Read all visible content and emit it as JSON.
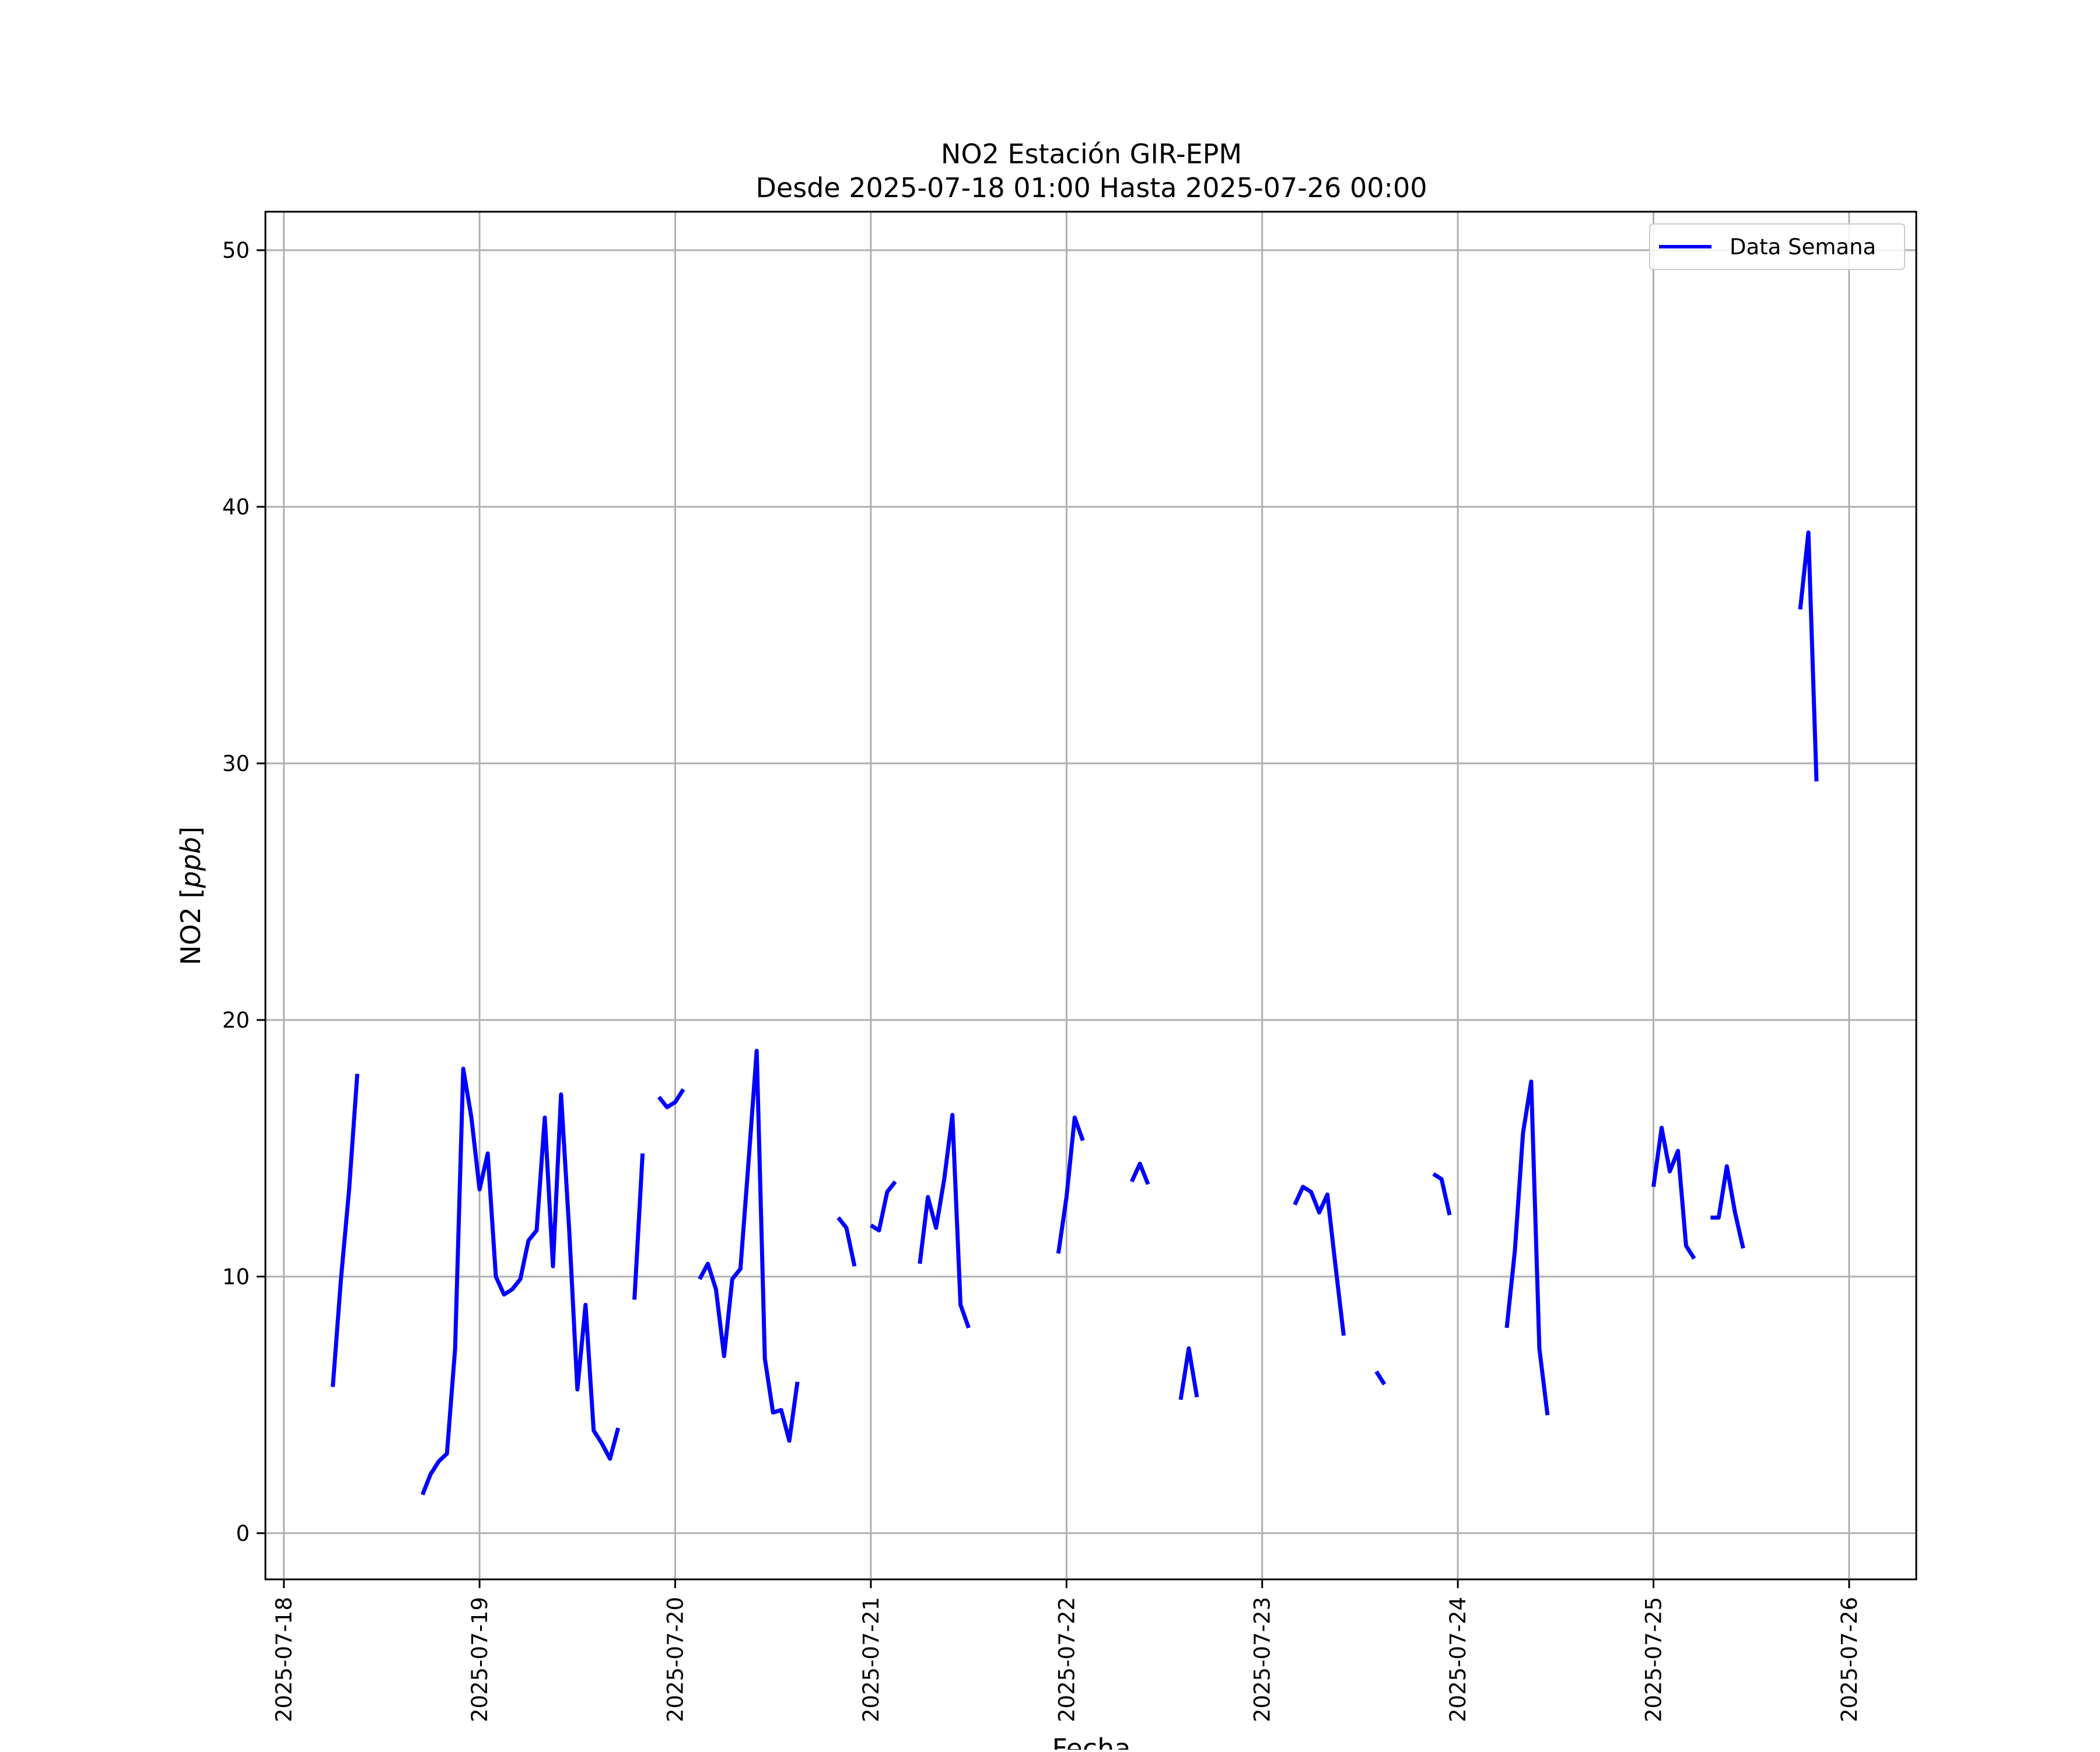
{
  "chart_data": {
    "type": "line",
    "title": "NO2 Estación GIR-EPM",
    "subtitle": "Desde 2025-07-18 01:00 Hasta 2025-07-26 00:00",
    "xlabel": "Fecha",
    "ylabel_prefix": "NO2 [",
    "ylabel_unit": "ppb",
    "ylabel_suffix": "]",
    "x_type": "datetime",
    "xlim": [
      "2025-07-17 21:44",
      "2025-07-26 08:14"
    ],
    "ylim": [
      -1.8,
      51.5
    ],
    "x_ticks": [
      "2025-07-18",
      "2025-07-19",
      "2025-07-20",
      "2025-07-21",
      "2025-07-22",
      "2025-07-23",
      "2025-07-24",
      "2025-07-25",
      "2025-07-26"
    ],
    "y_ticks": [
      0,
      10,
      20,
      30,
      40,
      50
    ],
    "grid": true,
    "legend_position": "top-right",
    "colors": {
      "series": "#0000ff",
      "grid": "#b0b0b0",
      "axes": "#000000"
    },
    "series": [
      {
        "name": "Data Semana",
        "segments": [
          [
            [
              "2025-07-18 06:00",
              5.7
            ],
            [
              "2025-07-18 07:00",
              9.9
            ],
            [
              "2025-07-18 08:00",
              13.4
            ],
            [
              "2025-07-18 09:00",
              17.9
            ]
          ],
          [
            [
              "2025-07-18 17:00",
              1.5
            ],
            [
              "2025-07-18 18:00",
              2.3
            ],
            [
              "2025-07-18 19:00",
              2.8
            ],
            [
              "2025-07-18 20:00",
              3.1
            ],
            [
              "2025-07-18 21:00",
              7.2
            ],
            [
              "2025-07-18 22:00",
              18.1
            ],
            [
              "2025-07-18 23:00",
              16.2
            ],
            [
              "2025-07-19 00:00",
              13.4
            ],
            [
              "2025-07-19 01:00",
              14.8
            ],
            [
              "2025-07-19 02:00",
              10.0
            ],
            [
              "2025-07-19 03:00",
              9.3
            ],
            [
              "2025-07-19 04:00",
              9.5
            ],
            [
              "2025-07-19 05:00",
              9.9
            ],
            [
              "2025-07-19 06:00",
              11.4
            ],
            [
              "2025-07-19 07:00",
              11.8
            ],
            [
              "2025-07-19 08:00",
              16.2
            ],
            [
              "2025-07-19 09:00",
              10.4
            ],
            [
              "2025-07-19 10:00",
              17.1
            ],
            [
              "2025-07-19 11:00",
              11.8
            ],
            [
              "2025-07-19 12:00",
              5.6
            ],
            [
              "2025-07-19 13:00",
              8.9
            ],
            [
              "2025-07-19 14:00",
              4.0
            ],
            [
              "2025-07-19 15:00",
              3.5
            ],
            [
              "2025-07-19 16:00",
              2.9
            ],
            [
              "2025-07-19 17:00",
              4.1
            ]
          ],
          [
            [
              "2025-07-19 19:00",
              9.1
            ],
            [
              "2025-07-19 20:00",
              14.8
            ]
          ],
          [
            [
              "2025-07-19 22:00",
              17.0
            ],
            [
              "2025-07-19 23:00",
              16.6
            ],
            [
              "2025-07-20 00:00",
              16.8
            ],
            [
              "2025-07-20 01:00",
              17.3
            ]
          ],
          [
            [
              "2025-07-20 03:00",
              9.9
            ],
            [
              "2025-07-20 04:00",
              10.5
            ],
            [
              "2025-07-20 05:00",
              9.5
            ],
            [
              "2025-07-20 06:00",
              6.9
            ],
            [
              "2025-07-20 07:00",
              9.9
            ],
            [
              "2025-07-20 08:00",
              10.3
            ],
            [
              "2025-07-20 09:00",
              14.5
            ],
            [
              "2025-07-20 10:00",
              18.8
            ],
            [
              "2025-07-20 11:00",
              6.8
            ],
            [
              "2025-07-20 12:00",
              4.7
            ],
            [
              "2025-07-20 13:00",
              4.8
            ],
            [
              "2025-07-20 14:00",
              3.6
            ],
            [
              "2025-07-20 15:00",
              5.9
            ]
          ],
          [
            [
              "2025-07-20 20:00",
              12.3
            ],
            [
              "2025-07-20 21:00",
              11.9
            ],
            [
              "2025-07-20 22:00",
              10.4
            ]
          ],
          [
            [
              "2025-07-21 00:00",
              12.0
            ],
            [
              "2025-07-21 01:00",
              11.8
            ],
            [
              "2025-07-21 02:00",
              13.3
            ],
            [
              "2025-07-21 03:00",
              13.7
            ]
          ],
          [
            [
              "2025-07-21 06:00",
              10.5
            ],
            [
              "2025-07-21 07:00",
              13.1
            ],
            [
              "2025-07-21 08:00",
              11.9
            ],
            [
              "2025-07-21 09:00",
              13.8
            ],
            [
              "2025-07-21 10:00",
              16.3
            ],
            [
              "2025-07-21 11:00",
              8.9
            ],
            [
              "2025-07-21 12:00",
              8.0
            ]
          ],
          [
            [
              "2025-07-21 23:00",
              10.9
            ],
            [
              "2025-07-22 00:00",
              13.1
            ],
            [
              "2025-07-22 01:00",
              16.2
            ],
            [
              "2025-07-22 02:00",
              15.3
            ]
          ],
          [
            [
              "2025-07-22 08:00",
              13.7
            ],
            [
              "2025-07-22 09:00",
              14.4
            ],
            [
              "2025-07-22 10:00",
              13.6
            ]
          ],
          [
            [
              "2025-07-22 14:00",
              5.2
            ],
            [
              "2025-07-22 15:00",
              7.2
            ],
            [
              "2025-07-22 16:00",
              5.3
            ]
          ],
          [
            [
              "2025-07-23 04:00",
              12.8
            ],
            [
              "2025-07-23 05:00",
              13.5
            ],
            [
              "2025-07-23 06:00",
              13.3
            ],
            [
              "2025-07-23 07:00",
              12.5
            ],
            [
              "2025-07-23 08:00",
              13.2
            ],
            [
              "2025-07-23 09:00",
              10.4
            ],
            [
              "2025-07-23 10:00",
              7.7
            ]
          ],
          [
            [
              "2025-07-23 14:00",
              6.3
            ],
            [
              "2025-07-23 15:00",
              5.8
            ]
          ],
          [
            [
              "2025-07-23 21:00",
              14.0
            ],
            [
              "2025-07-23 22:00",
              13.8
            ],
            [
              "2025-07-23 23:00",
              12.4
            ]
          ],
          [
            [
              "2025-07-24 06:00",
              8.0
            ],
            [
              "2025-07-24 07:00",
              11.0
            ],
            [
              "2025-07-24 08:00",
              15.6
            ],
            [
              "2025-07-24 09:00",
              17.6
            ],
            [
              "2025-07-24 10:00",
              7.2
            ],
            [
              "2025-07-24 11:00",
              4.6
            ]
          ],
          [
            [
              "2025-07-25 00:00",
              13.5
            ],
            [
              "2025-07-25 01:00",
              15.8
            ],
            [
              "2025-07-25 02:00",
              14.1
            ],
            [
              "2025-07-25 03:00",
              14.9
            ],
            [
              "2025-07-25 04:00",
              11.2
            ],
            [
              "2025-07-25 05:00",
              10.7
            ]
          ],
          [
            [
              "2025-07-25 07:00",
              12.3
            ],
            [
              "2025-07-25 08:00",
              12.3
            ],
            [
              "2025-07-25 09:00",
              14.3
            ],
            [
              "2025-07-25 10:00",
              12.5
            ],
            [
              "2025-07-25 11:00",
              11.1
            ]
          ],
          [
            [
              "2025-07-25 18:00",
              36.0
            ],
            [
              "2025-07-25 19:00",
              39.0
            ],
            [
              "2025-07-25 20:00",
              29.3
            ]
          ]
        ]
      }
    ]
  }
}
